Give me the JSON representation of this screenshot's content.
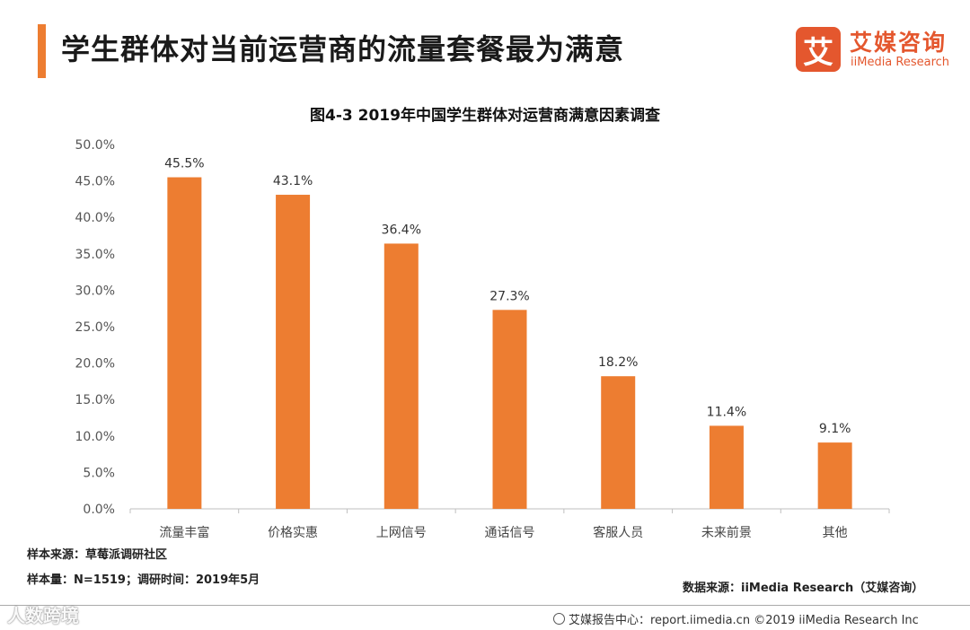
{
  "header": {
    "title": "学生群体对当前运营商的流量套餐最为满意",
    "accent_color": "#ED7D31"
  },
  "logo": {
    "mark": "艾",
    "name_cn": "艾媒咨询",
    "name_en": "iiMedia Research"
  },
  "chart_data": {
    "type": "bar",
    "title": "图4-3 2019年中国学生群体对运营商满意因素调查",
    "categories": [
      "流量丰富",
      "价格实惠",
      "上网信号",
      "通话信号",
      "客服人员",
      "未来前景",
      "其他"
    ],
    "values": [
      45.5,
      43.1,
      36.4,
      27.3,
      18.2,
      11.4,
      9.1
    ],
    "value_labels": [
      "45.5%",
      "43.1%",
      "36.4%",
      "27.3%",
      "18.2%",
      "11.4%",
      "9.1%"
    ],
    "y_ticks": [
      0,
      5,
      10,
      15,
      20,
      25,
      30,
      35,
      40,
      45,
      50
    ],
    "y_tick_labels": [
      "0.0%",
      "5.0%",
      "10.0%",
      "15.0%",
      "20.0%",
      "25.0%",
      "30.0%",
      "35.0%",
      "40.0%",
      "45.0%",
      "50.0%"
    ],
    "ylim": [
      0,
      50
    ],
    "xlabel": "",
    "ylabel": "",
    "grid": false,
    "bar_color": "#ED7D31"
  },
  "notes": {
    "sample_source": "样本来源：草莓派调研社区",
    "sample_size": "样本量：N=1519；调研时间：2019年5月"
  },
  "source": "数据来源：iiMedia Research（艾媒咨询）",
  "footer": {
    "text": "艾媒报告中心：report.iimedia.cn  ©2019  iiMedia Research Inc"
  },
  "watermark": "人数跨境"
}
